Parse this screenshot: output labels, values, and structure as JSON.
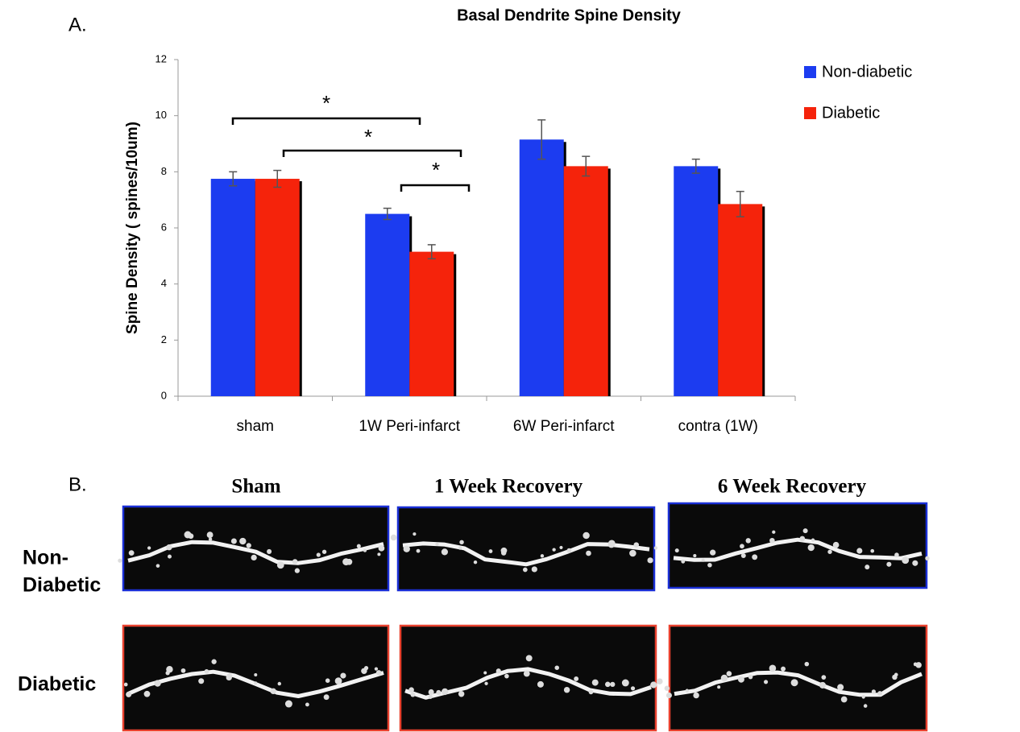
{
  "chart_data": {
    "type": "bar",
    "title": "Basal Dendrite Spine Density",
    "y_label": "Spine Density ( spines/10um)",
    "categories": [
      "sham",
      "1W Peri-infarct",
      "6W Peri-infarct",
      "contra (1W)"
    ],
    "series": [
      {
        "name": "Non-diabetic",
        "color": "#1c3cf0",
        "values": [
          7.75,
          6.5,
          9.15,
          8.2
        ],
        "errors": [
          0.25,
          0.2,
          0.7,
          0.25
        ]
      },
      {
        "name": "Diabetic",
        "color": "#f5230b",
        "values": [
          7.75,
          5.15,
          8.2,
          6.85
        ],
        "errors": [
          0.3,
          0.25,
          0.35,
          0.45
        ]
      }
    ],
    "ylim": [
      0,
      12
    ],
    "yticks": [
      0,
      2,
      4,
      6,
      8,
      10,
      12
    ],
    "annotations": [
      "*",
      "*",
      "*"
    ],
    "legend": "top-right"
  },
  "panel_a": {
    "label": "A."
  },
  "panel_b": {
    "label": "B.",
    "columns": [
      "Sham",
      "1 Week Recovery",
      "6 Week Recovery"
    ],
    "rows": [
      [
        "Non-",
        "Diabetic"
      ],
      [
        "Diabetic"
      ]
    ]
  }
}
